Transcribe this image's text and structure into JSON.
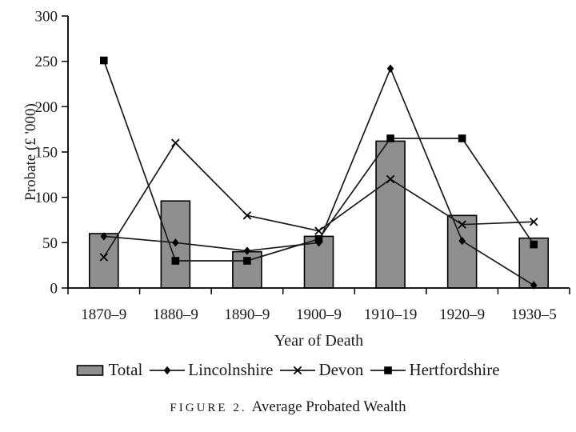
{
  "chart_data": {
    "type": "bar",
    "subtype": "bar-and-line-combo",
    "title": "Average Probated Wealth",
    "categories": [
      "1870–9",
      "1880–9",
      "1890–9",
      "1900–9",
      "1910–19",
      "1920–9",
      "1930–5"
    ],
    "bar_series": {
      "name": "Total",
      "values": [
        60,
        96,
        40,
        57,
        162,
        80,
        55
      ]
    },
    "line_series": [
      {
        "name": "Lincolnshire",
        "marker": "diamond",
        "values": [
          57,
          50,
          41,
          50,
          242,
          52,
          3
        ]
      },
      {
        "name": "Devon",
        "marker": "x",
        "values": [
          34,
          160,
          80,
          63,
          120,
          70,
          73
        ]
      },
      {
        "name": "Hertfordshire",
        "marker": "square",
        "values": [
          251,
          30,
          30,
          54,
          165,
          165,
          48
        ]
      }
    ],
    "xlabel": "Year of Death",
    "ylabel": "Probate (£ '000)",
    "ylim": [
      0,
      300
    ],
    "yticks": [
      0,
      50,
      100,
      150,
      200,
      250,
      300
    ],
    "grid": false,
    "legend_position": "bottom",
    "colors": {
      "bar_fill": "#8f8f8f",
      "bar_stroke": "#000000",
      "line": "#1a1a1a",
      "marker": "#000000",
      "axis": "#000000"
    }
  },
  "caption": {
    "figure_label": "FIGURE 2.",
    "title": "Average Probated Wealth"
  },
  "legend": {
    "items": [
      "Total",
      "Lincolnshire",
      "Devon",
      "Hertfordshire"
    ]
  }
}
